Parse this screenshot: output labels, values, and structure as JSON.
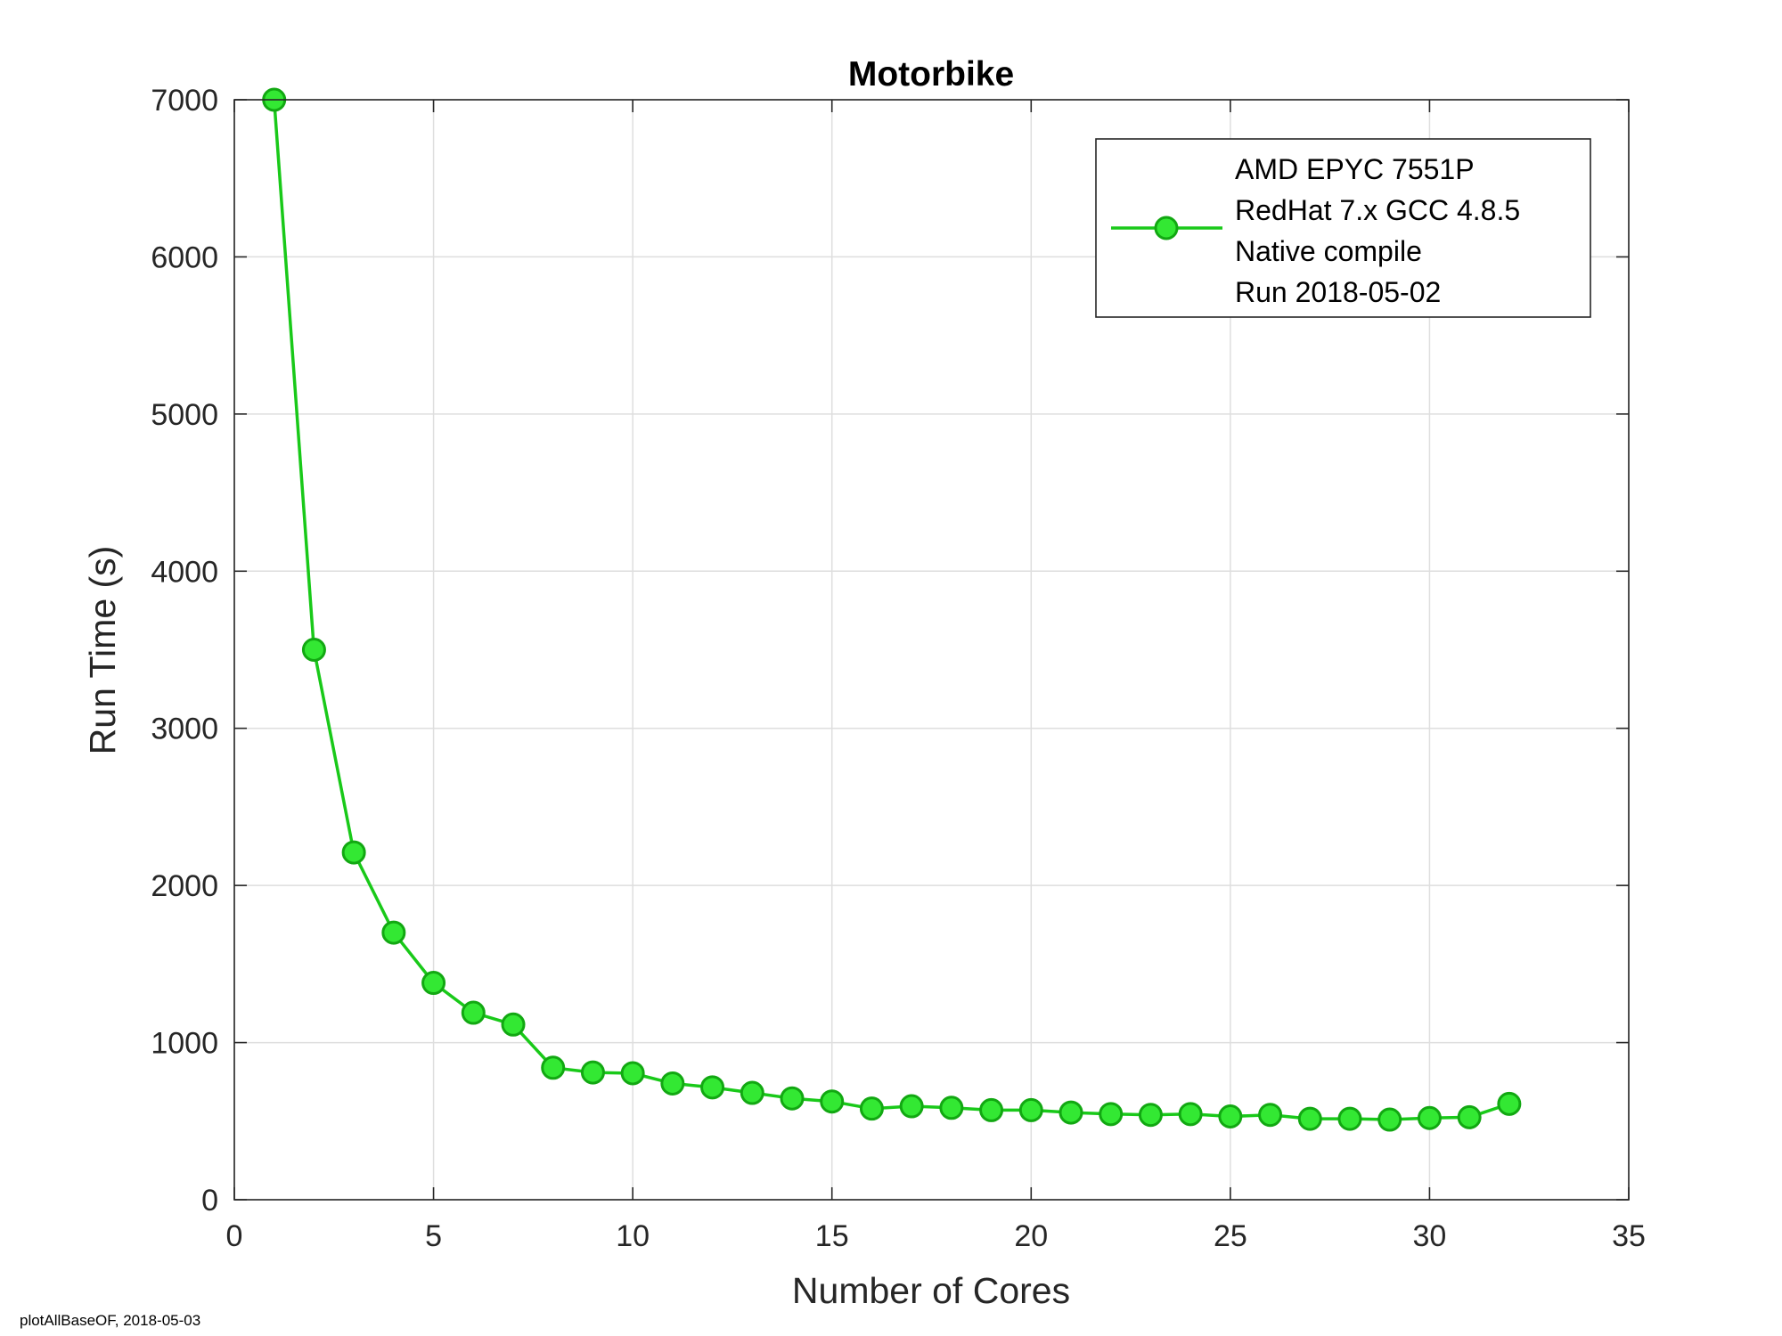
{
  "chart_data": {
    "type": "line",
    "title": "Motorbike",
    "xlabel": "Number of Cores",
    "ylabel": "Run Time (s)",
    "xlim": [
      0,
      35
    ],
    "ylim": [
      0,
      7000
    ],
    "xticks": [
      0,
      5,
      10,
      15,
      20,
      25,
      30,
      35
    ],
    "yticks": [
      0,
      1000,
      2000,
      3000,
      4000,
      5000,
      6000,
      7000
    ],
    "grid": true,
    "legend_position": "top-right",
    "series": [
      {
        "name_lines": [
          "AMD EPYC 7551P",
          "RedHat 7.x GCC 4.8.5",
          "Native compile",
          "Run 2018-05-02"
        ],
        "color": "#19c919",
        "marker_fill": "#33e833",
        "marker_edge": "#12a812",
        "x": [
          1,
          2,
          3,
          4,
          5,
          6,
          7,
          8,
          9,
          10,
          11,
          12,
          13,
          14,
          15,
          16,
          17,
          18,
          19,
          20,
          21,
          22,
          23,
          24,
          25,
          26,
          27,
          28,
          29,
          30,
          31,
          32
        ],
        "y": [
          7000,
          3500,
          2210,
          1700,
          1380,
          1190,
          1115,
          840,
          810,
          805,
          740,
          715,
          680,
          645,
          625,
          580,
          595,
          585,
          570,
          570,
          555,
          545,
          540,
          545,
          530,
          540,
          515,
          515,
          510,
          520,
          525,
          610
        ]
      }
    ]
  },
  "footer": {
    "text": "plotAllBaseOF, 2018-05-03"
  }
}
